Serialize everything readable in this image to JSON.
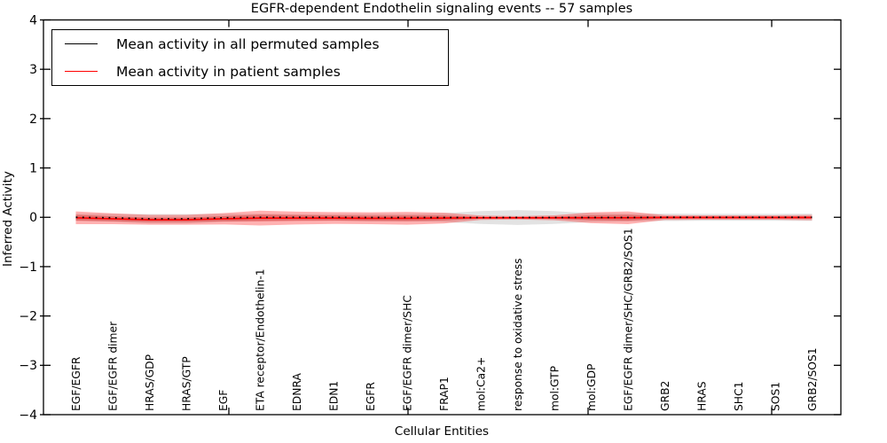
{
  "title": "EGFR-dependent Endothelin signaling events -- 57 samples",
  "legend": {
    "items": [
      {
        "label": "Mean activity in all permuted samples",
        "color": "#000000"
      },
      {
        "label": "Mean activity in patient samples",
        "color": "#ff0000"
      }
    ]
  },
  "chart_data": {
    "type": "line",
    "title": "EGFR-dependent Endothelin signaling events -- 57 samples",
    "xlabel": "Cellular Entities",
    "ylabel": "Inferred Activity",
    "ylim": [
      -4,
      4
    ],
    "grid": false,
    "legend_position": "upper left",
    "ytick_values": [
      4,
      3,
      2,
      1,
      0,
      -1,
      -2,
      -3,
      -4
    ],
    "ytick_labels": [
      "4",
      "3",
      "2",
      "1",
      "0",
      "−1",
      "−2",
      "−3",
      "−4"
    ],
    "categories": [
      "EGF/EGFR",
      "EGF/EGFR dimer",
      "HRAS/GDP",
      "HRAS/GTP",
      "EGF",
      "ETA receptor/Endothelin-1",
      "EDNRA",
      "EDN1",
      "EGFR",
      "EGF/EGFR dimer/SHC",
      "FRAP1",
      "mol:Ca2+",
      "response to oxidative stress",
      "mol:GTP",
      "mol:GDP",
      "EGF/EGFR dimer/SHC/GRB2/SOS1",
      "GRB2",
      "HRAS",
      "SHC1",
      "SOS1",
      "GRB2/SOS1"
    ],
    "series": [
      {
        "name": "Mean activity in all permuted samples",
        "color": "#000000",
        "style": "dotted",
        "values": [
          0,
          -0.01,
          -0.03,
          -0.03,
          -0.01,
          0,
          0,
          0,
          -0.005,
          -0.005,
          -0.005,
          -0.005,
          -0.005,
          -0.005,
          -0.005,
          -0.005,
          0,
          0,
          0,
          0,
          0
        ]
      },
      {
        "name": "Mean activity in patient samples",
        "color": "#ff0000",
        "style": "solid",
        "values": [
          -0.01,
          -0.03,
          -0.05,
          -0.05,
          -0.03,
          -0.015,
          -0.015,
          -0.015,
          -0.02,
          -0.02,
          -0.015,
          -0.01,
          -0.01,
          -0.01,
          -0.01,
          -0.01,
          -0.005,
          -0.005,
          -0.005,
          -0.005,
          -0.005
        ]
      }
    ],
    "bands": [
      {
        "name": "permuted-samples-std",
        "color": "#999999",
        "opacity": 0.28,
        "center_series": 0,
        "halfwidths": [
          0.07,
          0.08,
          0.095,
          0.095,
          0.08,
          0.07,
          0.065,
          0.065,
          0.075,
          0.075,
          0.09,
          0.13,
          0.15,
          0.13,
          0.09,
          0.08,
          0.075,
          0.07,
          0.07,
          0.07,
          0.075
        ]
      },
      {
        "name": "patient-samples-std",
        "color": "#ff0000",
        "opacity": 0.3,
        "center_series": 1,
        "halfwidths": [
          0.13,
          0.11,
          0.1,
          0.1,
          0.115,
          0.15,
          0.13,
          0.12,
          0.12,
          0.13,
          0.11,
          0.045,
          0.035,
          0.05,
          0.11,
          0.13,
          0.05,
          0.045,
          0.045,
          0.045,
          0.055
        ]
      },
      {
        "name": "patient-samples-inner-band",
        "color": "#cc0000",
        "opacity": 0.3,
        "center_series": 1,
        "halfwidths": [
          0.06,
          0.05,
          0.045,
          0.045,
          0.052,
          0.068,
          0.059,
          0.054,
          0.054,
          0.059,
          0.05,
          0.02,
          0.016,
          0.023,
          0.05,
          0.059,
          0.023,
          0.02,
          0.02,
          0.02,
          0.025
        ]
      }
    ]
  }
}
